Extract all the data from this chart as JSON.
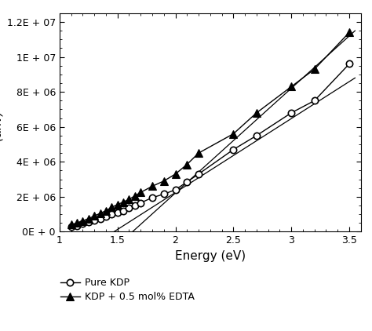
{
  "pure_kdp_x": [
    1.1,
    1.15,
    1.2,
    1.25,
    1.3,
    1.35,
    1.4,
    1.45,
    1.5,
    1.55,
    1.6,
    1.65,
    1.7,
    1.8,
    1.9,
    2.0,
    2.1,
    2.2,
    2.5,
    2.7,
    3.0,
    3.2,
    3.5
  ],
  "pure_kdp_y": [
    280000.0,
    350000.0,
    450000.0,
    550000.0,
    650000.0,
    750000.0,
    850000.0,
    1000000.0,
    1100000.0,
    1200000.0,
    1350000.0,
    1500000.0,
    1650000.0,
    1950000.0,
    2150000.0,
    2400000.0,
    2850000.0,
    3300000.0,
    4700000.0,
    5500000.0,
    6800000.0,
    7500000.0,
    9600000.0
  ],
  "edta_kdp_x": [
    1.1,
    1.15,
    1.2,
    1.25,
    1.3,
    1.35,
    1.4,
    1.45,
    1.5,
    1.55,
    1.6,
    1.65,
    1.7,
    1.8,
    1.9,
    2.0,
    2.1,
    2.2,
    2.5,
    2.7,
    3.0,
    3.2,
    3.5
  ],
  "edta_kdp_y": [
    400000.0,
    500000.0,
    620000.0,
    750000.0,
    900000.0,
    1050000.0,
    1200000.0,
    1400000.0,
    1550000.0,
    1700000.0,
    1850000.0,
    2050000.0,
    2250000.0,
    2600000.0,
    2900000.0,
    3300000.0,
    3850000.0,
    4500000.0,
    5600000.0,
    6800000.0,
    8300000.0,
    9300000.0,
    11400000.0
  ],
  "line1_x": [
    1.47,
    3.55
  ],
  "line1_y": [
    0.0,
    8800000.0
  ],
  "line2_x": [
    1.63,
    3.55
  ],
  "line2_y": [
    0.0,
    11500000.0
  ],
  "xlabel": "Energy (eV)",
  "xlim": [
    1.0,
    3.6
  ],
  "ylim": [
    0,
    12500000.0
  ],
  "yticks": [
    0,
    2000000,
    4000000,
    6000000,
    8000000,
    10000000,
    12000000
  ],
  "ytick_labels": [
    "0E + 0",
    "2E + 06",
    "4E + 06",
    "6E + 06",
    "8E + 06",
    "1E + 07",
    "1.2E + 07"
  ],
  "xticks": [
    1.0,
    1.5,
    2.0,
    2.5,
    3.0,
    3.5
  ],
  "xtick_labels": [
    "1",
    "1.5",
    "2",
    "2.5",
    "3",
    "3.5"
  ],
  "legend_pure": "Pure KDP",
  "legend_edta": "KDP + 0.5 mol% EDTA",
  "line_color": "black",
  "background": "white",
  "fontsize_axis": 11,
  "fontsize_tick": 9,
  "fontsize_legend": 9
}
